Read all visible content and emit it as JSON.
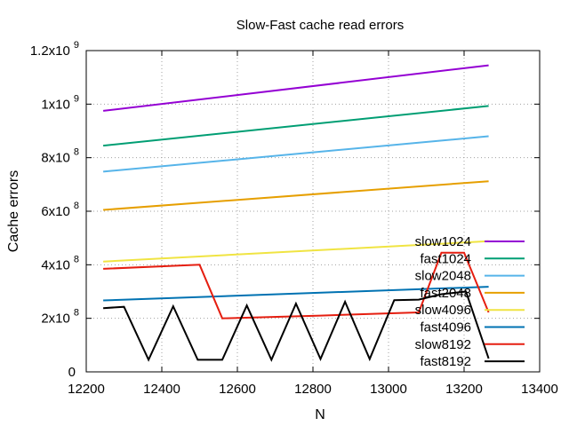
{
  "chart_data": {
    "type": "line",
    "title": "Slow-Fast cache read errors",
    "xlabel": "N",
    "ylabel": "Cache errors",
    "xlim": [
      12200,
      13400
    ],
    "ylim": [
      0,
      1200000000
    ],
    "grid": true,
    "legend_position": "bottom-right",
    "x_ticks": [
      {
        "value": 12200,
        "label": "12200"
      },
      {
        "value": 12400,
        "label": "12400"
      },
      {
        "value": 12600,
        "label": "12600"
      },
      {
        "value": 12800,
        "label": "12800"
      },
      {
        "value": 13000,
        "label": "13000"
      },
      {
        "value": 13200,
        "label": "13200"
      },
      {
        "value": 13400,
        "label": "13400"
      }
    ],
    "y_ticks": [
      {
        "value": 0,
        "mantissa": "0",
        "exp": ""
      },
      {
        "value": 200000000,
        "mantissa": "2x10",
        "exp": "8"
      },
      {
        "value": 400000000,
        "mantissa": "4x10",
        "exp": "8"
      },
      {
        "value": 600000000,
        "mantissa": "6x10",
        "exp": "8"
      },
      {
        "value": 800000000,
        "mantissa": "8x10",
        "exp": "8"
      },
      {
        "value": 1000000000,
        "mantissa": "1x10",
        "exp": "9"
      },
      {
        "value": 1200000000,
        "mantissa": "1.2x10",
        "exp": "9"
      }
    ],
    "series": [
      {
        "name": "slow1024",
        "color": "#9400d3",
        "points": [
          [
            12245,
            975000000
          ],
          [
            13265,
            1145000000
          ]
        ]
      },
      {
        "name": "fast1024",
        "color": "#009e73",
        "points": [
          [
            12245,
            845000000
          ],
          [
            13265,
            993000000
          ]
        ]
      },
      {
        "name": "slow2048",
        "color": "#56b4e9",
        "points": [
          [
            12245,
            748000000
          ],
          [
            13265,
            880000000
          ]
        ]
      },
      {
        "name": "fast2048",
        "color": "#e69f00",
        "points": [
          [
            12245,
            605000000
          ],
          [
            13265,
            712000000
          ]
        ]
      },
      {
        "name": "slow4096",
        "color": "#f0e442",
        "points": [
          [
            12245,
            412000000
          ],
          [
            13265,
            488000000
          ]
        ]
      },
      {
        "name": "fast4096",
        "color": "#0072b2",
        "points": [
          [
            12245,
            267000000
          ],
          [
            13265,
            318000000
          ]
        ]
      },
      {
        "name": "slow8192",
        "color": "#e51e10",
        "points": [
          [
            12245,
            385000000
          ],
          [
            12500,
            400000000
          ],
          [
            12560,
            200000000
          ],
          [
            12820,
            210000000
          ],
          [
            13080,
            222000000
          ],
          [
            13140,
            445000000
          ],
          [
            13200,
            445000000
          ],
          [
            13265,
            222000000
          ]
        ]
      },
      {
        "name": "fast8192",
        "color": "#000000",
        "points": [
          [
            12245,
            238000000
          ],
          [
            12300,
            243000000
          ],
          [
            12365,
            45000000
          ],
          [
            12430,
            245000000
          ],
          [
            12495,
            45000000
          ],
          [
            12560,
            45000000
          ],
          [
            12625,
            248000000
          ],
          [
            12690,
            45000000
          ],
          [
            12755,
            255000000
          ],
          [
            12820,
            48000000
          ],
          [
            12885,
            262000000
          ],
          [
            12950,
            48000000
          ],
          [
            13015,
            268000000
          ],
          [
            13080,
            270000000
          ],
          [
            13140,
            290000000
          ],
          [
            13205,
            300000000
          ],
          [
            13265,
            50000000
          ]
        ]
      }
    ]
  }
}
